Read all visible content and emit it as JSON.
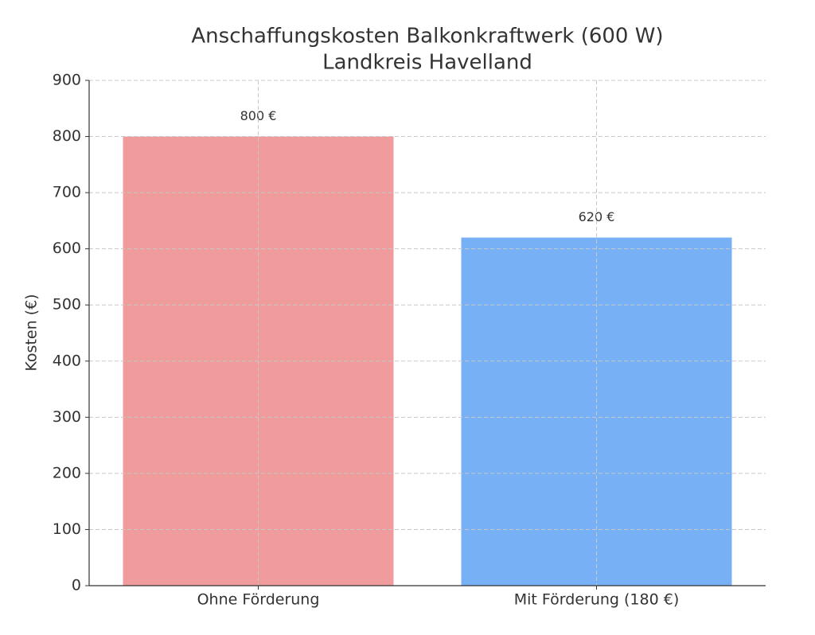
{
  "chart_data": {
    "type": "bar",
    "title": [
      "Anschaffungskosten Balkonkraftwerk (600 W)",
      "Landkreis Havelland"
    ],
    "ylabel": "Kosten (€)",
    "categories": [
      "Ohne Förderung",
      "Mit Förderung (180 €)"
    ],
    "values": [
      800,
      620
    ],
    "value_labels": [
      "800 €",
      "620 €"
    ],
    "colors": [
      "#f09c9c",
      "#78b0f5"
    ],
    "ylim": [
      0,
      900
    ],
    "yticks": [
      0,
      100,
      200,
      300,
      400,
      500,
      600,
      700,
      800,
      900
    ],
    "grid": true
  }
}
